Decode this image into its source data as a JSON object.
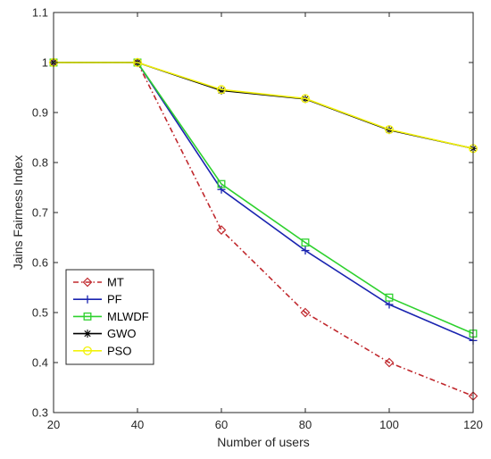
{
  "chart_data": {
    "type": "line",
    "title": "",
    "xlabel": "Number of users",
    "ylabel": "Jains Fairness Index",
    "x": [
      20,
      40,
      60,
      80,
      100,
      120
    ],
    "xlim": [
      20,
      120
    ],
    "ylim": [
      0.3,
      1.1
    ],
    "xticks": [
      "20",
      "40",
      "60",
      "80",
      "100",
      "120"
    ],
    "yticks": [
      "0.3",
      "0.4",
      "0.5",
      "0.6",
      "0.7",
      "0.8",
      "0.9",
      "1",
      "1.1"
    ],
    "grid": false,
    "legend_position": "bottom-left",
    "series": [
      {
        "name": "MT",
        "color": "#c0282d",
        "dash": "dashdot",
        "marker": "diamond",
        "values": [
          1.0,
          1.0,
          0.665,
          0.5,
          0.4,
          0.333
        ]
      },
      {
        "name": "PF",
        "color": "#1a24b0",
        "dash": "solid",
        "marker": "plus",
        "values": [
          1.0,
          1.0,
          0.746,
          0.624,
          0.516,
          0.444
        ]
      },
      {
        "name": "MLWDF",
        "color": "#2ed12e",
        "dash": "solid",
        "marker": "square",
        "values": [
          1.0,
          1.0,
          0.757,
          0.64,
          0.53,
          0.458
        ]
      },
      {
        "name": "GWO",
        "color": "#000000",
        "dash": "solid",
        "marker": "asterisk",
        "values": [
          1.0,
          1.0,
          0.944,
          0.927,
          0.865,
          0.828
        ]
      },
      {
        "name": "PSO",
        "color": "#f2f20a",
        "dash": "solid",
        "marker": "circle",
        "values": [
          1.0,
          1.0,
          0.946,
          0.928,
          0.866,
          0.828
        ]
      }
    ]
  }
}
